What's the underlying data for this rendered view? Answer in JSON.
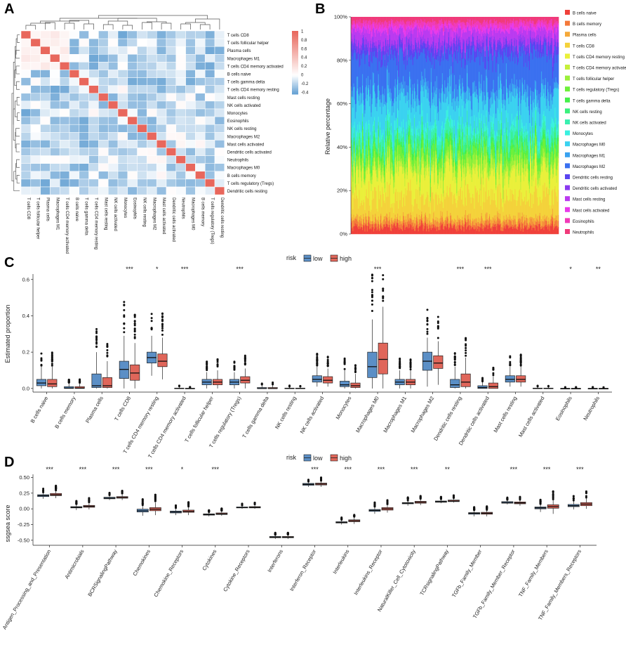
{
  "panels": [
    "A",
    "B",
    "C",
    "D"
  ],
  "colors": {
    "low": "#5b8fc6",
    "high": "#e0665a",
    "corr_neg": "#5b9bd0",
    "corr_zero": "#ffffff",
    "corr_pos": "#e8675c"
  },
  "chart_data": [
    {
      "id": "A",
      "type": "heatmap",
      "title": "",
      "rows": [
        "T cells CD8",
        "T cells follicular helper",
        "Plasma cells",
        "Macrophages M1",
        "T cells CD4 memory activated",
        "B cells naive",
        "T cells gamma delta",
        "T cells CD4 memory resting",
        "Mast cells resting",
        "NK cells activated",
        "Monocytes",
        "Eosinophils",
        "NK cells resting",
        "Macrophages M2",
        "Mast cells activated",
        "Dendritic cells activated",
        "Neutrophils",
        "Macrophages M0",
        "B cells memory",
        "T cells regulatory (Tregs)",
        "Dendritic cells resting"
      ],
      "colorbar_ticks": [
        1,
        0.8,
        0.6,
        0.4,
        0.2,
        0,
        -0.2,
        -0.4
      ],
      "colorbar_labels": [
        "1",
        "0.8",
        "0.6",
        "0.4",
        "0.2",
        "0",
        "-0.2",
        "-0.4"
      ],
      "value_range": [
        -0.45,
        1
      ]
    },
    {
      "id": "B",
      "type": "area",
      "ylabel": "Relative percentage",
      "yticks": [
        "0%",
        "20%",
        "40%",
        "60%",
        "80%",
        "100%"
      ],
      "legend_position": "right",
      "legend": [
        {
          "name": "B cells naive",
          "color": "#f0403a"
        },
        {
          "name": "B cells memory",
          "color": "#f4793a"
        },
        {
          "name": "Plasma cells",
          "color": "#f5a93a"
        },
        {
          "name": "T cells CD8",
          "color": "#f4d23a"
        },
        {
          "name": "T cells CD4 memory resting",
          "color": "#eaf03a"
        },
        {
          "name": "T cells CD4 memory activated",
          "color": "#c6f03a"
        },
        {
          "name": "T cells follicular helper",
          "color": "#9bf03a"
        },
        {
          "name": "T cells regulatory (Tregs)",
          "color": "#6ef03a"
        },
        {
          "name": "T cells gamma delta",
          "color": "#45f04a"
        },
        {
          "name": "NK cells resting",
          "color": "#3af07c"
        },
        {
          "name": "NK cells activated",
          "color": "#3af0b0"
        },
        {
          "name": "Monocytes",
          "color": "#3af0e0"
        },
        {
          "name": "Macrophages M0",
          "color": "#3ad2f0"
        },
        {
          "name": "Macrophages M1",
          "color": "#3aa2f0"
        },
        {
          "name": "Macrophages M2",
          "color": "#3a70f0"
        },
        {
          "name": "Dendritic cells resting",
          "color": "#5a45f0"
        },
        {
          "name": "Dendritic cells activated",
          "color": "#8a3af0"
        },
        {
          "name": "Mast cells resting",
          "color": "#ba3af0"
        },
        {
          "name": "Mast cells activated",
          "color": "#e83aea"
        },
        {
          "name": "Eosinophils",
          "color": "#f03ab8"
        },
        {
          "name": "Neutrophils",
          "color": "#f03a7a"
        }
      ]
    },
    {
      "id": "C",
      "type": "box",
      "legend_title": "risk",
      "legend": [
        "low",
        "high"
      ],
      "ylabel": "Estimated proportion",
      "ylim": [
        -0.02,
        0.63
      ],
      "yticks": [
        0.0,
        0.2,
        0.4,
        0.6
      ],
      "ytick_labels": [
        "0.0",
        "0.2",
        "0.4",
        "0.6"
      ],
      "categories": [
        "B cells naive",
        "B cells memory",
        "Plasma cells",
        "T cells CD8",
        "T cells CD4 memory resting",
        "T cells CD4 memory activated",
        "T cells follicular helper",
        "T cells regulatory (Tregs)",
        "T cells gamma delta",
        "NK cells resting",
        "NK cells activated",
        "Monocytes",
        "Macrophages M0",
        "Macrophages M1",
        "Macrophages M2",
        "Dendritic cells resting",
        "Dendritic cells activated",
        "Mast cells resting",
        "Mast cells activated",
        "Eosinophils",
        "Neutrophils"
      ],
      "significance": [
        "",
        "",
        "",
        "***",
        "*",
        "***",
        "",
        "***",
        "",
        "",
        "",
        "",
        "***",
        "",
        "",
        "***",
        "***",
        "",
        "",
        "*",
        "**"
      ],
      "series": [
        {
          "name": "low",
          "boxes": [
            [
              0,
              0.015,
              0.03,
              0.05,
              0.12
            ],
            [
              0,
              0,
              0.002,
              0.01,
              0.03
            ],
            [
              0,
              0.005,
              0.015,
              0.08,
              0.2
            ],
            [
              0,
              0.055,
              0.105,
              0.15,
              0.29
            ],
            [
              0.07,
              0.14,
              0.17,
              0.2,
              0.29
            ],
            [
              0,
              0,
              0,
              0.002,
              0.01
            ],
            [
              0,
              0.02,
              0.035,
              0.05,
              0.09
            ],
            [
              0,
              0.02,
              0.035,
              0.05,
              0.09
            ],
            [
              0,
              0,
              0,
              0.005,
              0.02
            ],
            [
              0,
              0,
              0,
              0.002,
              0.01
            ],
            [
              0.01,
              0.035,
              0.05,
              0.07,
              0.12
            ],
            [
              0,
              0.01,
              0.02,
              0.04,
              0.1
            ],
            [
              0,
              0.06,
              0.12,
              0.2,
              0.38
            ],
            [
              0,
              0.02,
              0.035,
              0.05,
              0.1
            ],
            [
              0.01,
              0.1,
              0.15,
              0.2,
              0.28
            ],
            [
              0,
              0.005,
              0.02,
              0.05,
              0.12
            ],
            [
              0,
              0,
              0.005,
              0.015,
              0.035
            ],
            [
              0.01,
              0.035,
              0.05,
              0.07,
              0.12
            ],
            [
              0,
              0,
              0,
              0.002,
              0.01
            ],
            [
              0,
              0,
              0,
              0,
              0.005
            ],
            [
              0,
              0,
              0,
              0,
              0.005
            ]
          ]
        },
        {
          "name": "high",
          "boxes": [
            [
              0,
              0.01,
              0.025,
              0.05,
              0.12
            ],
            [
              0,
              0,
              0.002,
              0.01,
              0.03
            ],
            [
              0,
              0.005,
              0.015,
              0.06,
              0.15
            ],
            [
              0,
              0.045,
              0.085,
              0.13,
              0.25
            ],
            [
              0.05,
              0.12,
              0.15,
              0.19,
              0.28
            ],
            [
              0,
              0,
              0,
              0.001,
              0.005
            ],
            [
              0,
              0.02,
              0.035,
              0.05,
              0.1
            ],
            [
              0,
              0.03,
              0.045,
              0.065,
              0.11
            ],
            [
              0,
              0,
              0,
              0.005,
              0.02
            ],
            [
              0,
              0,
              0,
              0.002,
              0.01
            ],
            [
              0.01,
              0.03,
              0.045,
              0.065,
              0.11
            ],
            [
              0,
              0.005,
              0.015,
              0.03,
              0.08
            ],
            [
              0,
              0.08,
              0.16,
              0.25,
              0.45
            ],
            [
              0,
              0.02,
              0.035,
              0.05,
              0.1
            ],
            [
              0.02,
              0.11,
              0.14,
              0.18,
              0.26
            ],
            [
              0,
              0.01,
              0.035,
              0.08,
              0.17
            ],
            [
              0,
              0,
              0.01,
              0.03,
              0.07
            ],
            [
              0.01,
              0.035,
              0.05,
              0.07,
              0.12
            ],
            [
              0,
              0,
              0,
              0.002,
              0.01
            ],
            [
              0,
              0,
              0,
              0,
              0.005
            ],
            [
              0,
              0,
              0,
              0,
              0.005
            ]
          ]
        }
      ]
    },
    {
      "id": "D",
      "type": "box",
      "legend_title": "risk",
      "legend": [
        "low",
        "high"
      ],
      "ylabel": "ssgsea score",
      "ylim": [
        -0.58,
        0.55
      ],
      "yticks": [
        -0.5,
        -0.25,
        0.0,
        0.25,
        0.5
      ],
      "ytick_labels": [
        "-0.50",
        "-0.25",
        "0.00",
        "0.25",
        "0.50"
      ],
      "categories": [
        "Antigen_Processing_and_Presentation",
        "Antimicrobials",
        "BCRSignalingPathway",
        "Chemokines",
        "Chemokine_Receptors",
        "Cytokines",
        "Cytokine_Receptors",
        "Interferons",
        "Interferon_Receptor",
        "Interleukins",
        "Interleukins_Receptor",
        "NaturalKiller_Cell_Cytotoxicity",
        "TCRsignalingPathway",
        "TGFb_Family_Member",
        "TGFb_Family_Member_Receptor",
        "TNF_Family_Members",
        "TNF_Family_Members_Receptors"
      ],
      "significance": [
        "***",
        "***",
        "***",
        "***",
        "*",
        "***",
        "",
        "",
        "***",
        "***",
        "***",
        "***",
        "**",
        "",
        "***",
        "***",
        "***"
      ],
      "series": [
        {
          "name": "low",
          "boxes": [
            [
              0.16,
              0.195,
              0.21,
              0.225,
              0.26
            ],
            [
              -0.02,
              0.015,
              0.025,
              0.035,
              0.07
            ],
            [
              0.14,
              0.16,
              0.17,
              0.185,
              0.21
            ],
            [
              -0.11,
              -0.05,
              -0.03,
              -0.005,
              0.05
            ],
            [
              -0.1,
              -0.065,
              -0.05,
              -0.035,
              0.0
            ],
            [
              -0.12,
              -0.1,
              -0.09,
              -0.08,
              -0.06
            ],
            [
              0.0,
              0.015,
              0.02,
              0.03,
              0.05
            ],
            [
              -0.48,
              -0.46,
              -0.45,
              -0.44,
              -0.42
            ],
            [
              0.35,
              0.375,
              0.39,
              0.405,
              0.43
            ],
            [
              -0.25,
              -0.225,
              -0.215,
              -0.205,
              -0.18
            ],
            [
              -0.08,
              -0.04,
              -0.025,
              -0.01,
              0.03
            ],
            [
              0.05,
              0.08,
              0.09,
              0.1,
              0.13
            ],
            [
              0.09,
              0.105,
              0.115,
              0.125,
              0.15
            ],
            [
              -0.12,
              -0.085,
              -0.07,
              -0.06,
              -0.03
            ],
            [
              0.07,
              0.09,
              0.1,
              0.115,
              0.14
            ],
            [
              -0.05,
              0.0,
              0.015,
              0.03,
              0.07
            ],
            [
              -0.01,
              0.035,
              0.05,
              0.07,
              0.12
            ]
          ]
        },
        {
          "name": "high",
          "boxes": [
            [
              0.17,
              0.21,
              0.225,
              0.245,
              0.29
            ],
            [
              -0.01,
              0.025,
              0.04,
              0.055,
              0.1
            ],
            [
              0.14,
              0.17,
              0.18,
              0.195,
              0.23
            ],
            [
              -0.1,
              -0.03,
              -0.005,
              0.02,
              0.1
            ],
            [
              -0.1,
              -0.055,
              -0.04,
              -0.02,
              0.03
            ],
            [
              -0.11,
              -0.09,
              -0.08,
              -0.065,
              -0.04
            ],
            [
              0.0,
              0.015,
              0.025,
              0.035,
              0.06
            ],
            [
              -0.48,
              -0.46,
              -0.45,
              -0.44,
              -0.42
            ],
            [
              0.35,
              0.38,
              0.395,
              0.41,
              0.44
            ],
            [
              -0.24,
              -0.205,
              -0.19,
              -0.175,
              -0.14
            ],
            [
              -0.06,
              -0.02,
              0.0,
              0.02,
              0.06
            ],
            [
              0.06,
              0.09,
              0.105,
              0.12,
              0.15
            ],
            [
              0.1,
              0.115,
              0.125,
              0.14,
              0.17
            ],
            [
              -0.12,
              -0.085,
              -0.07,
              -0.055,
              -0.02
            ],
            [
              0.05,
              0.08,
              0.095,
              0.11,
              0.14
            ],
            [
              -0.08,
              0.01,
              0.035,
              0.065,
              0.14
            ],
            [
              0.0,
              0.05,
              0.075,
              0.1,
              0.17
            ]
          ]
        }
      ]
    }
  ]
}
